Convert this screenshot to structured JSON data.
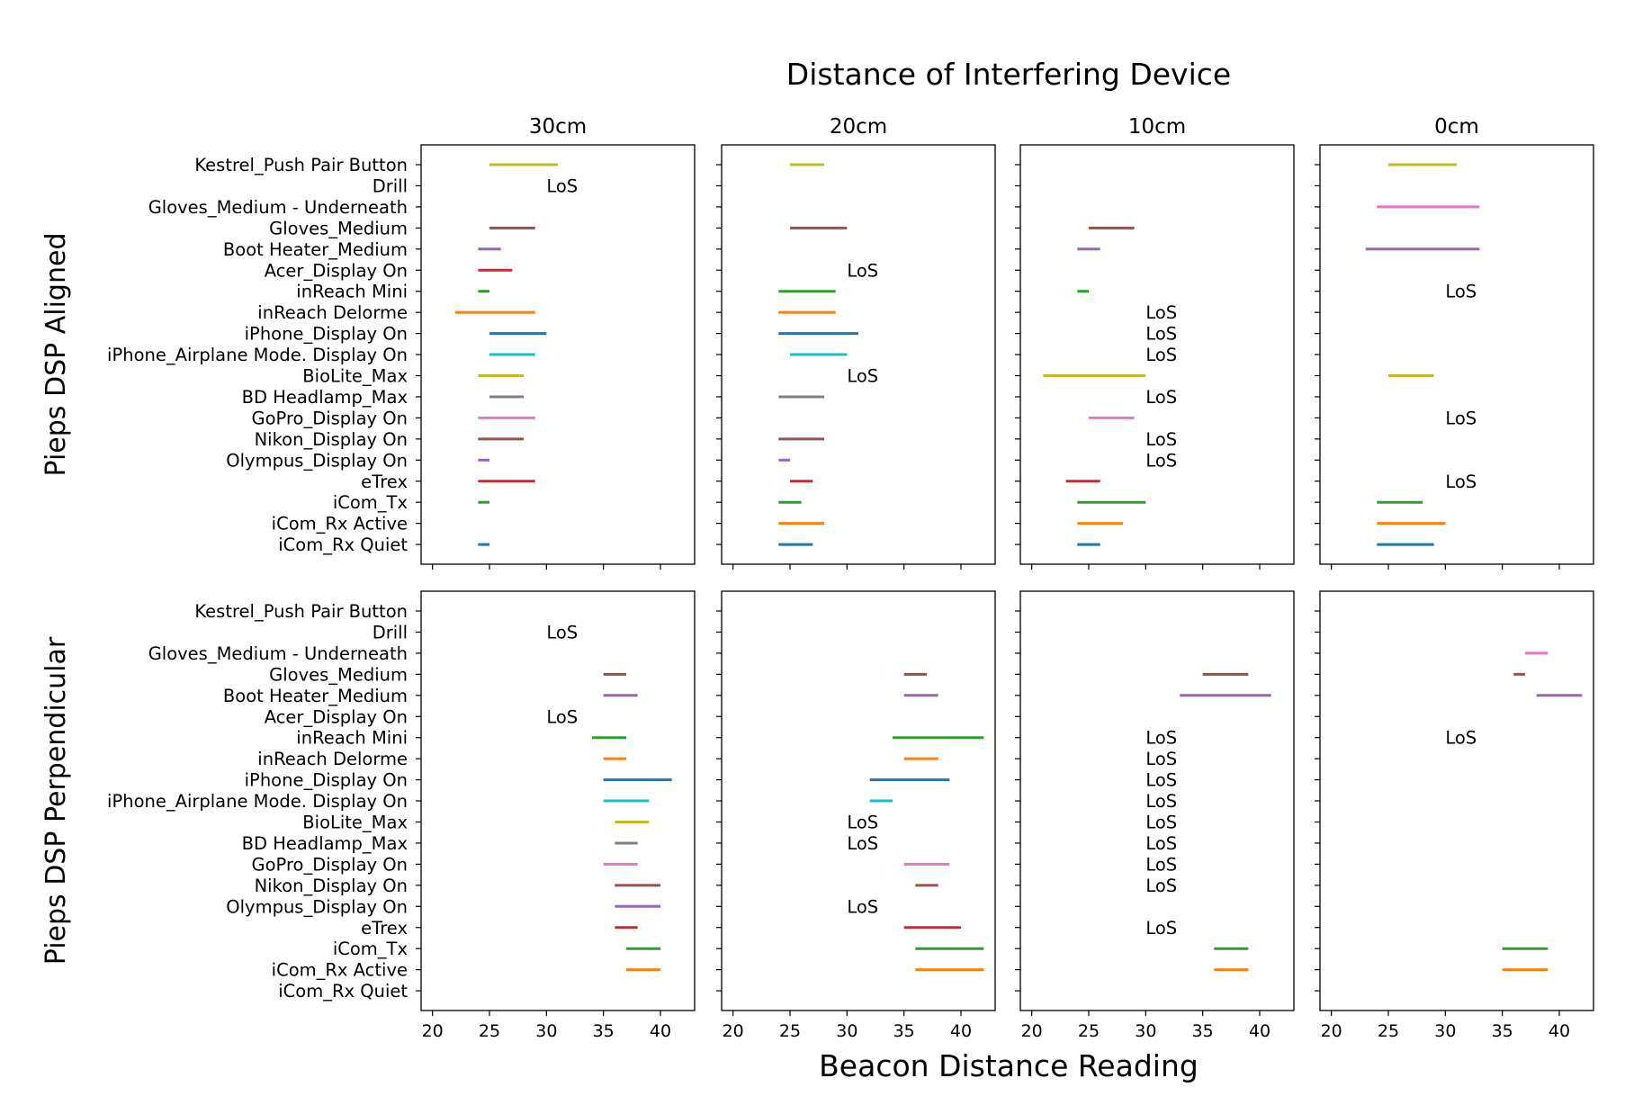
{
  "chart_data": {
    "type": "range",
    "title": "Distance of Interfering Device",
    "xlabel": "Beacon Distance Reading",
    "xlim": [
      19,
      43
    ],
    "xticks": [
      "20",
      "25",
      "30",
      "35",
      "40"
    ],
    "columns": [
      "30cm",
      "20cm",
      "10cm",
      "0cm"
    ],
    "rows": [
      "Pieps DSP Aligned",
      "Pieps DSP Perpendicular"
    ],
    "no_signal_label": "LoS",
    "devices": [
      "Kestrel_Push Pair Button",
      "Drill",
      "Gloves_Medium - Underneath",
      "Gloves_Medium",
      "Boot Heater_Medium",
      "Acer_Display On",
      "inReach Mini",
      "inReach Delorme",
      "iPhone_Display On",
      "iPhone_Airplane Mode. Display On",
      "BioLite_Max",
      "BD Headlamp_Max",
      "GoPro_Display On",
      "Nikon_Display On",
      "Olympus_Display On",
      "eTrex",
      "iCom_Tx",
      "iCom_Rx Active",
      "iCom_Rx Quiet"
    ],
    "colors": [
      "#bcbd22",
      "#1f77b4",
      "#e377c2",
      "#8c564b",
      "#9467bd",
      "#d62728",
      "#2ca02c",
      "#ff7f0e",
      "#1f77b4",
      "#17becf",
      "#bcbd22",
      "#7f7f7f",
      "#e377c2",
      "#8c564b",
      "#9467bd",
      "#d62728",
      "#2ca02c",
      "#ff7f0e",
      "#1f77b4"
    ],
    "panels": [
      {
        "row": 0,
        "col": 0,
        "ranges": [
          [
            0,
            25,
            31
          ],
          [
            3,
            25,
            29
          ],
          [
            4,
            24,
            26
          ],
          [
            5,
            24,
            27
          ],
          [
            6,
            24,
            25
          ],
          [
            7,
            22,
            29
          ],
          [
            8,
            25,
            30
          ],
          [
            9,
            25,
            29
          ],
          [
            10,
            24,
            28
          ],
          [
            11,
            25,
            28
          ],
          [
            12,
            24,
            29
          ],
          [
            13,
            24,
            28
          ],
          [
            14,
            24,
            25
          ],
          [
            15,
            24,
            29
          ],
          [
            16,
            24,
            25
          ],
          [
            18,
            24,
            25
          ]
        ],
        "los": [
          1
        ]
      },
      {
        "row": 0,
        "col": 1,
        "ranges": [
          [
            0,
            25,
            28
          ],
          [
            3,
            25,
            30
          ],
          [
            6,
            24,
            29
          ],
          [
            7,
            24,
            29
          ],
          [
            8,
            24,
            31
          ],
          [
            9,
            25,
            30
          ],
          [
            11,
            24,
            28
          ],
          [
            13,
            24,
            28
          ],
          [
            14,
            24,
            25
          ],
          [
            15,
            25,
            27
          ],
          [
            16,
            24,
            26
          ],
          [
            17,
            24,
            28
          ],
          [
            18,
            24,
            27
          ]
        ],
        "los": [
          5,
          10
        ]
      },
      {
        "row": 0,
        "col": 2,
        "ranges": [
          [
            3,
            25,
            29
          ],
          [
            4,
            24,
            26
          ],
          [
            6,
            24,
            25
          ],
          [
            10,
            21,
            30
          ],
          [
            12,
            25,
            29
          ],
          [
            15,
            23,
            26
          ],
          [
            16,
            24,
            30
          ],
          [
            17,
            24,
            28
          ],
          [
            18,
            24,
            26
          ]
        ],
        "los": [
          7,
          8,
          9,
          11,
          13,
          14
        ]
      },
      {
        "row": 0,
        "col": 3,
        "ranges": [
          [
            0,
            25,
            31
          ],
          [
            2,
            24,
            33
          ],
          [
            4,
            23,
            33
          ],
          [
            10,
            25,
            29
          ],
          [
            16,
            24,
            28
          ],
          [
            17,
            24,
            30
          ],
          [
            18,
            24,
            29
          ]
        ],
        "los": [
          6,
          12,
          15
        ]
      },
      {
        "row": 1,
        "col": 0,
        "ranges": [
          [
            3,
            35,
            37
          ],
          [
            4,
            35,
            38
          ],
          [
            6,
            34,
            37
          ],
          [
            7,
            35,
            37
          ],
          [
            8,
            35,
            41
          ],
          [
            9,
            35,
            39
          ],
          [
            10,
            36,
            39
          ],
          [
            11,
            36,
            38
          ],
          [
            12,
            35,
            38
          ],
          [
            13,
            36,
            40
          ],
          [
            14,
            36,
            40
          ],
          [
            15,
            36,
            38
          ],
          [
            16,
            37,
            40
          ],
          [
            17,
            37,
            40
          ]
        ],
        "los": [
          1,
          5
        ]
      },
      {
        "row": 1,
        "col": 1,
        "ranges": [
          [
            3,
            35,
            37
          ],
          [
            4,
            35,
            38
          ],
          [
            6,
            34,
            42
          ],
          [
            7,
            35,
            38
          ],
          [
            8,
            32,
            39
          ],
          [
            9,
            32,
            34
          ],
          [
            12,
            35,
            39
          ],
          [
            13,
            36,
            38
          ],
          [
            15,
            35,
            40
          ],
          [
            16,
            36,
            42
          ],
          [
            17,
            36,
            42
          ]
        ],
        "los": [
          10,
          11,
          14
        ]
      },
      {
        "row": 1,
        "col": 2,
        "ranges": [
          [
            3,
            35,
            39
          ],
          [
            4,
            33,
            41
          ],
          [
            16,
            36,
            39
          ],
          [
            17,
            36,
            39
          ]
        ],
        "los": [
          6,
          7,
          8,
          9,
          10,
          11,
          12,
          13,
          15
        ]
      },
      {
        "row": 1,
        "col": 3,
        "ranges": [
          [
            2,
            37,
            39
          ],
          [
            3,
            36,
            37
          ],
          [
            4,
            38,
            42
          ],
          [
            16,
            35,
            39
          ],
          [
            17,
            35,
            39
          ]
        ],
        "los": [
          6
        ]
      }
    ]
  }
}
